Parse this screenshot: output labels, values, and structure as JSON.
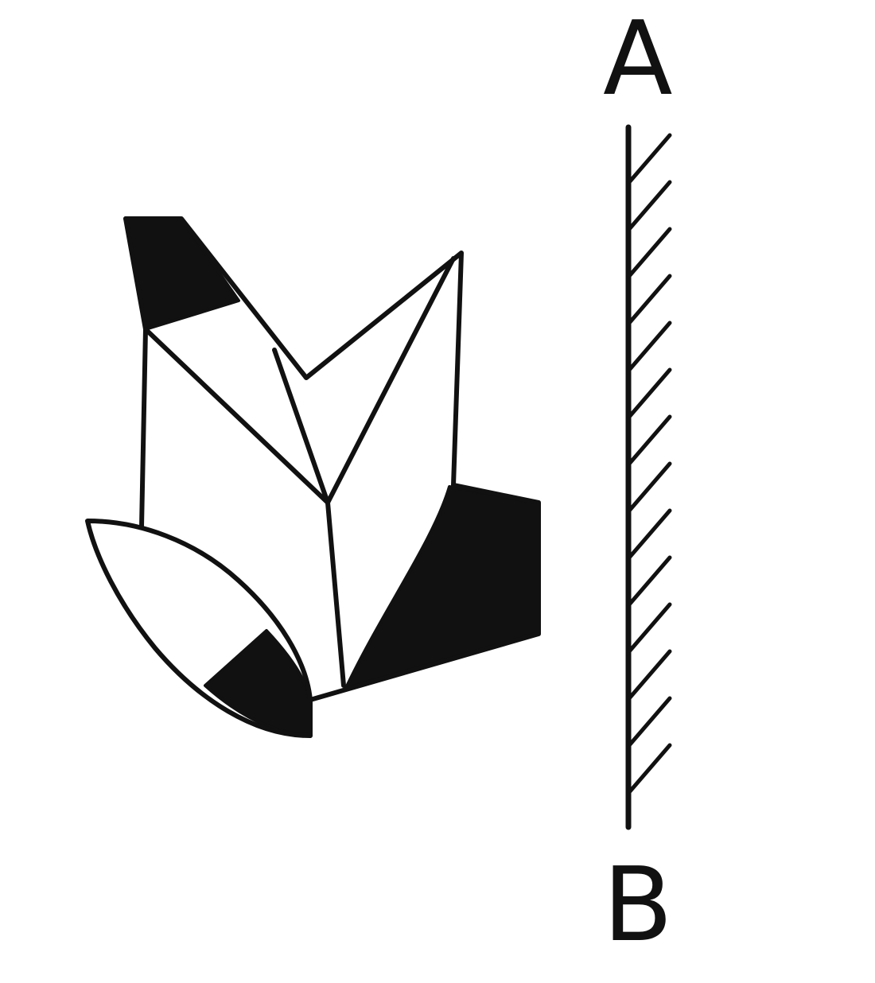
{
  "diagram": {
    "mirror": {
      "top_label": "A",
      "bottom_label": "B",
      "hatch_side": "right",
      "hatch_count": 14
    },
    "shape": {
      "fill_colors": {
        "shaded": "#111111",
        "unshaded": "#ffffff",
        "outline": "#111111"
      }
    }
  }
}
